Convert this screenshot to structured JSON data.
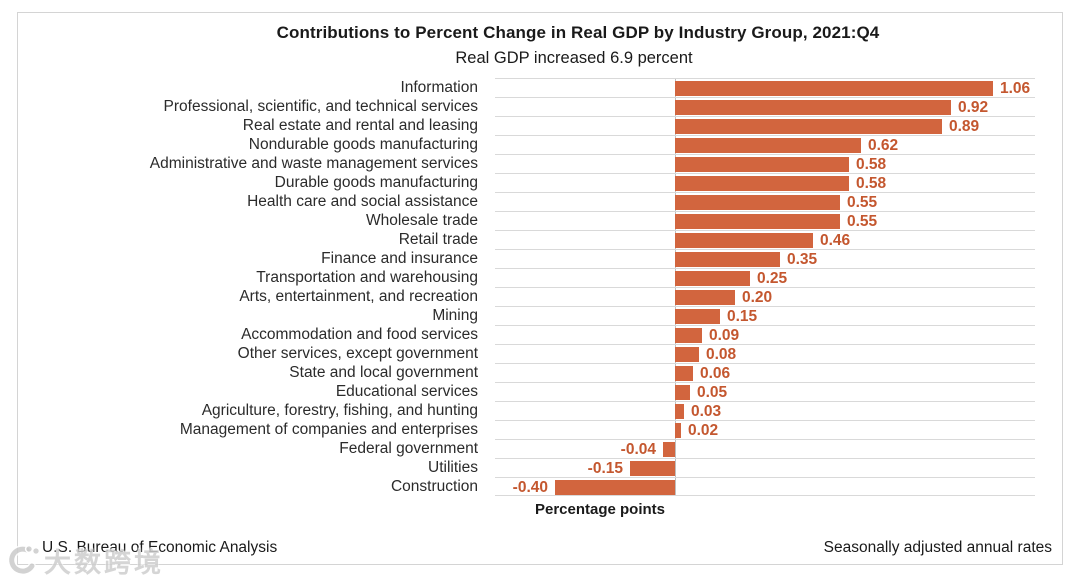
{
  "chart": {
    "title": "Contributions to Percent Change in Real GDP by Industry Group, 2021:Q4",
    "subtitle": "Real GDP increased 6.9 percent",
    "axis_title": "Percentage points",
    "footer_left": "U.S. Bureau of Economic Analysis",
    "footer_right": "Seasonally adjusted annual rates",
    "bar_color": "#D2653E",
    "value_label_color": "#C4572F",
    "gridline_color": "#D9D9D9",
    "axis_line_color": "#BFBFBF"
  },
  "chart_data": {
    "type": "bar",
    "orientation": "horizontal",
    "title": "Contributions to Percent Change in Real GDP by Industry Group, 2021:Q4",
    "subtitle": "Real GDP increased 6.9 percent",
    "xlabel": "Percentage points",
    "xlim": [
      -0.6,
      1.2
    ],
    "grid": "category-separators",
    "categories": [
      "Information",
      "Professional, scientific, and technical services",
      "Real estate and rental and leasing",
      "Nondurable goods manufacturing",
      "Administrative and waste management services",
      "Durable goods manufacturing",
      "Health care and social assistance",
      "Wholesale trade",
      "Retail trade",
      "Finance and insurance",
      "Transportation and warehousing",
      "Arts, entertainment, and recreation",
      "Mining",
      "Accommodation and food services",
      "Other services, except government",
      "State and local government",
      "Educational services",
      "Agriculture, forestry, fishing, and hunting",
      "Management of companies and enterprises",
      "Federal government",
      "Utilities",
      "Construction"
    ],
    "values": [
      1.06,
      0.92,
      0.89,
      0.62,
      0.58,
      0.58,
      0.55,
      0.55,
      0.46,
      0.35,
      0.25,
      0.2,
      0.15,
      0.09,
      0.08,
      0.06,
      0.05,
      0.03,
      0.02,
      -0.04,
      -0.15,
      -0.4
    ],
    "value_labels": [
      "1.06",
      "0.92",
      "0.89",
      "0.62",
      "0.58",
      "0.58",
      "0.55",
      "0.55",
      "0.46",
      "0.35",
      "0.25",
      "0.20",
      "0.15",
      "0.09",
      "0.08",
      "0.06",
      "0.05",
      "0.03",
      "0.02",
      "-0.04",
      "-0.15",
      "-0.40"
    ]
  },
  "watermark": {
    "icon": "swirl-logo",
    "text": "大数跨境"
  }
}
